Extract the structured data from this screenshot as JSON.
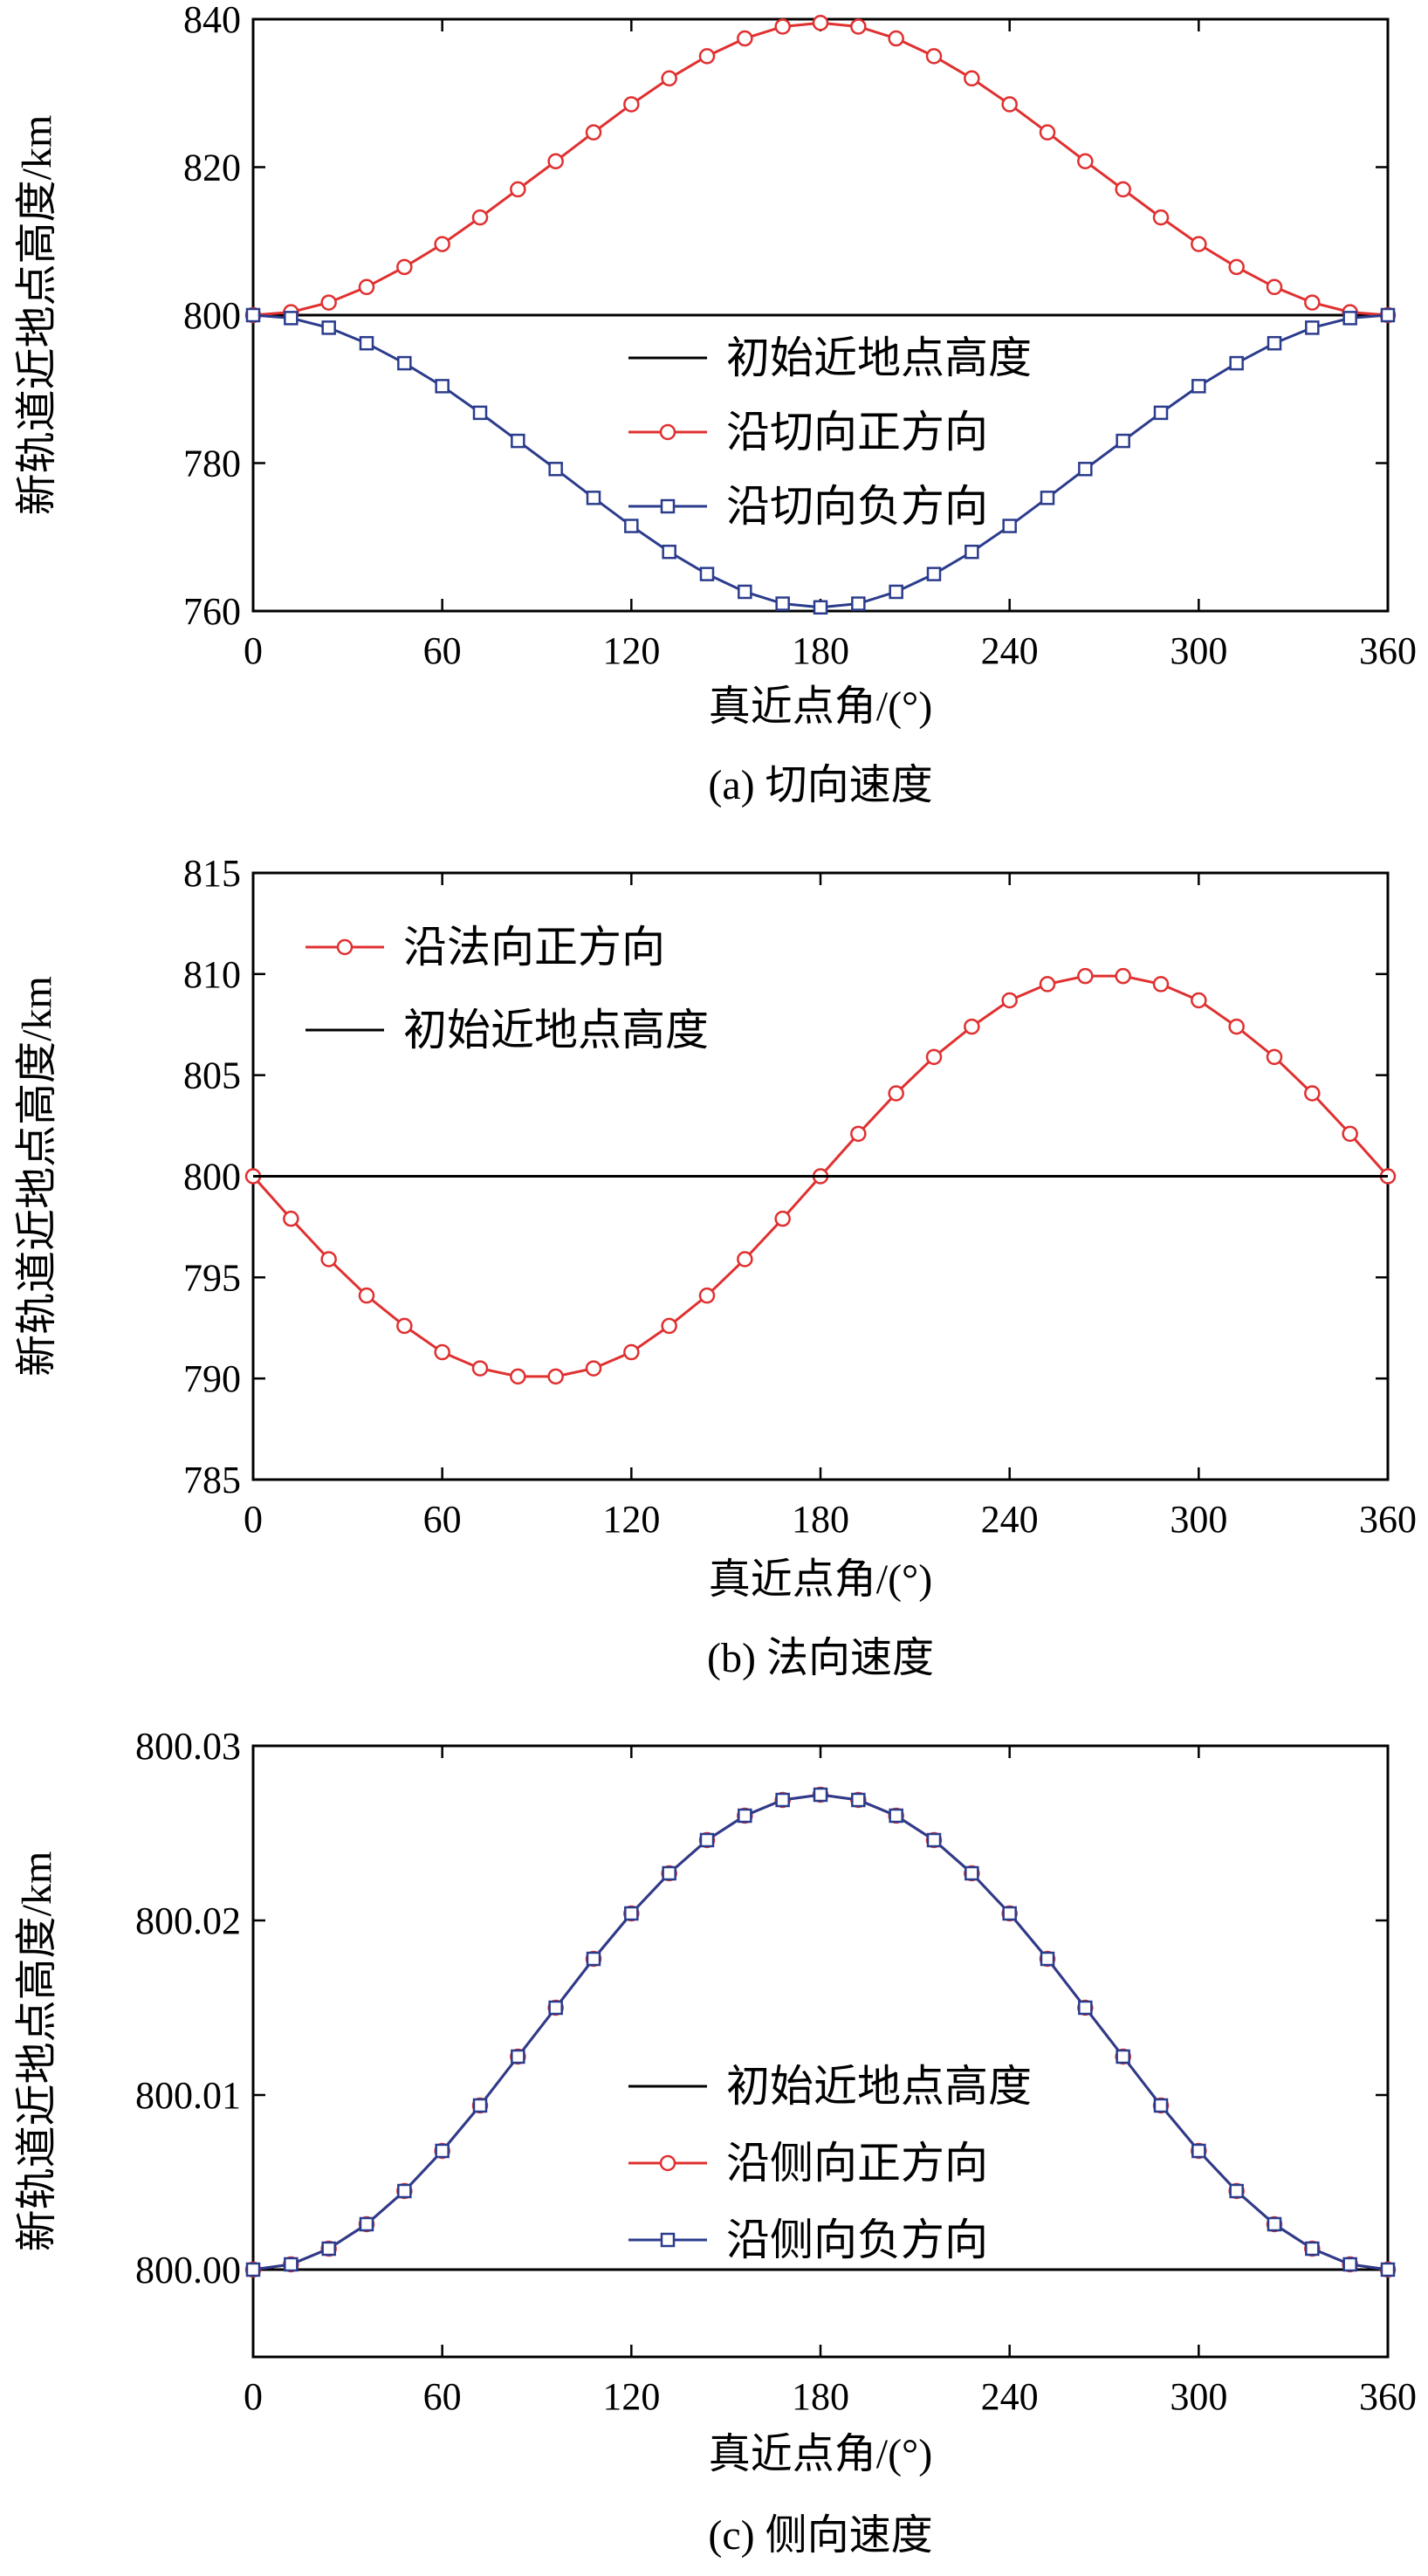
{
  "colors": {
    "red": "#e03030",
    "blue": "#2b3c8c",
    "black": "#000000",
    "grid": "#d8d8d8"
  },
  "chart_data": [
    {
      "id": "a",
      "type": "line",
      "caption": "(a) 切向速度",
      "xlabel": "真近点角/(°)",
      "ylabel": "新轨道近地点高度/km",
      "xlim": [
        0,
        360
      ],
      "ylim": [
        760,
        840
      ],
      "xticks": [
        0,
        60,
        120,
        180,
        240,
        300,
        360
      ],
      "xtick_labels": [
        "0",
        "60",
        "120",
        "180",
        "240",
        "300",
        "360"
      ],
      "yticks": [
        760,
        780,
        800,
        820,
        840
      ],
      "ytick_labels": [
        "760",
        "780",
        "800",
        "820",
        "840"
      ],
      "legend_position": "center",
      "series": [
        {
          "name": "初始近地点高度",
          "color_key": "black",
          "marker": "none",
          "x": [
            0,
            360
          ],
          "y": [
            800,
            800
          ]
        },
        {
          "name": "沿切向正方向",
          "color_key": "red",
          "marker": "circle",
          "x": [
            0,
            12,
            24,
            36,
            48,
            60,
            72,
            84,
            96,
            108,
            120,
            132,
            144,
            156,
            168,
            180,
            192,
            204,
            216,
            228,
            240,
            252,
            264,
            276,
            288,
            300,
            312,
            324,
            336,
            348,
            360
          ],
          "y": [
            800.0,
            800.4,
            801.7,
            803.8,
            806.5,
            809.6,
            813.2,
            817.0,
            820.8,
            824.7,
            828.5,
            832.0,
            835.0,
            837.4,
            839.0,
            839.5,
            839.0,
            837.4,
            835.0,
            832.0,
            828.5,
            824.7,
            820.8,
            817.0,
            813.2,
            809.6,
            806.5,
            803.8,
            801.7,
            800.4,
            800.0
          ]
        },
        {
          "name": "沿切向负方向",
          "color_key": "blue",
          "marker": "square",
          "x": [
            0,
            12,
            24,
            36,
            48,
            60,
            72,
            84,
            96,
            108,
            120,
            132,
            144,
            156,
            168,
            180,
            192,
            204,
            216,
            228,
            240,
            252,
            264,
            276,
            288,
            300,
            312,
            324,
            336,
            348,
            360
          ],
          "y": [
            800.0,
            799.6,
            798.3,
            796.2,
            793.5,
            790.4,
            786.8,
            783.0,
            779.2,
            775.3,
            771.5,
            768.0,
            765.0,
            762.6,
            761.0,
            760.5,
            761.0,
            762.6,
            765.0,
            768.0,
            771.5,
            775.3,
            779.2,
            783.0,
            786.8,
            790.4,
            793.5,
            796.2,
            798.3,
            799.6,
            800.0
          ]
        }
      ]
    },
    {
      "id": "b",
      "type": "line",
      "caption": "(b) 法向速度",
      "xlabel": "真近点角/(°)",
      "ylabel": "新轨道近地点高度/km",
      "xlim": [
        0,
        360
      ],
      "ylim": [
        785,
        815
      ],
      "xticks": [
        0,
        60,
        120,
        180,
        240,
        300,
        360
      ],
      "xtick_labels": [
        "0",
        "60",
        "120",
        "180",
        "240",
        "300",
        "360"
      ],
      "yticks": [
        785,
        790,
        795,
        800,
        805,
        810,
        815
      ],
      "ytick_labels": [
        "785",
        "790",
        "795",
        "800",
        "805",
        "810",
        "815"
      ],
      "legend_position": "top-left",
      "series": [
        {
          "name": "沿法向正方向",
          "color_key": "red",
          "marker": "circle",
          "x": [
            0,
            12,
            24,
            36,
            48,
            60,
            72,
            84,
            96,
            108,
            120,
            132,
            144,
            156,
            168,
            180,
            192,
            204,
            216,
            228,
            240,
            252,
            264,
            276,
            288,
            300,
            312,
            324,
            336,
            348,
            360
          ],
          "y": [
            800.0,
            797.9,
            795.9,
            794.1,
            792.6,
            791.3,
            790.5,
            790.1,
            790.1,
            790.5,
            791.3,
            792.6,
            794.1,
            795.9,
            797.9,
            800.0,
            802.1,
            804.1,
            805.9,
            807.4,
            808.7,
            809.5,
            809.9,
            809.9,
            809.5,
            808.7,
            807.4,
            805.9,
            804.1,
            802.1,
            800.0
          ]
        },
        {
          "name": "初始近地点高度",
          "color_key": "black",
          "marker": "none",
          "x": [
            0,
            360
          ],
          "y": [
            800,
            800
          ]
        }
      ]
    },
    {
      "id": "c",
      "type": "line",
      "caption": "(c) 侧向速度",
      "xlabel": "真近点角/(°)",
      "ylabel": "新轨道近地点高度/km",
      "xlim": [
        0,
        360
      ],
      "ylim": [
        799.995,
        800.03
      ],
      "xticks": [
        0,
        60,
        120,
        180,
        240,
        300,
        360
      ],
      "xtick_labels": [
        "0",
        "60",
        "120",
        "180",
        "240",
        "300",
        "360"
      ],
      "yticks": [
        800.0,
        800.01,
        800.02,
        800.03
      ],
      "ytick_labels": [
        "800.00",
        "800.01",
        "800.02",
        "800.03"
      ],
      "legend_position": "center-right",
      "series": [
        {
          "name": "初始近地点高度",
          "color_key": "black",
          "marker": "none",
          "x": [
            0,
            360
          ],
          "y": [
            800,
            800
          ]
        },
        {
          "name": "沿侧向正方向",
          "color_key": "red",
          "marker": "circle",
          "x": [
            0,
            12,
            24,
            36,
            48,
            60,
            72,
            84,
            96,
            108,
            120,
            132,
            144,
            156,
            168,
            180,
            192,
            204,
            216,
            228,
            240,
            252,
            264,
            276,
            288,
            300,
            312,
            324,
            336,
            348,
            360
          ],
          "y": [
            800.0,
            800.0003,
            800.0012,
            800.0026,
            800.0045,
            800.0068,
            800.0094,
            800.0122,
            800.015,
            800.0178,
            800.0204,
            800.0227,
            800.0246,
            800.026,
            800.0269,
            800.0272,
            800.0269,
            800.026,
            800.0246,
            800.0227,
            800.0204,
            800.0178,
            800.015,
            800.0122,
            800.0094,
            800.0068,
            800.0045,
            800.0026,
            800.0012,
            800.0003,
            800.0
          ]
        },
        {
          "name": "沿侧向负方向",
          "color_key": "blue",
          "marker": "square",
          "x": [
            0,
            12,
            24,
            36,
            48,
            60,
            72,
            84,
            96,
            108,
            120,
            132,
            144,
            156,
            168,
            180,
            192,
            204,
            216,
            228,
            240,
            252,
            264,
            276,
            288,
            300,
            312,
            324,
            336,
            348,
            360
          ],
          "y": [
            800.0,
            800.0003,
            800.0012,
            800.0026,
            800.0045,
            800.0068,
            800.0094,
            800.0122,
            800.015,
            800.0178,
            800.0204,
            800.0227,
            800.0246,
            800.026,
            800.0269,
            800.0272,
            800.0269,
            800.026,
            800.0246,
            800.0227,
            800.0204,
            800.0178,
            800.015,
            800.0122,
            800.0094,
            800.0068,
            800.0045,
            800.0026,
            800.0012,
            800.0003,
            800.0
          ]
        }
      ]
    }
  ]
}
